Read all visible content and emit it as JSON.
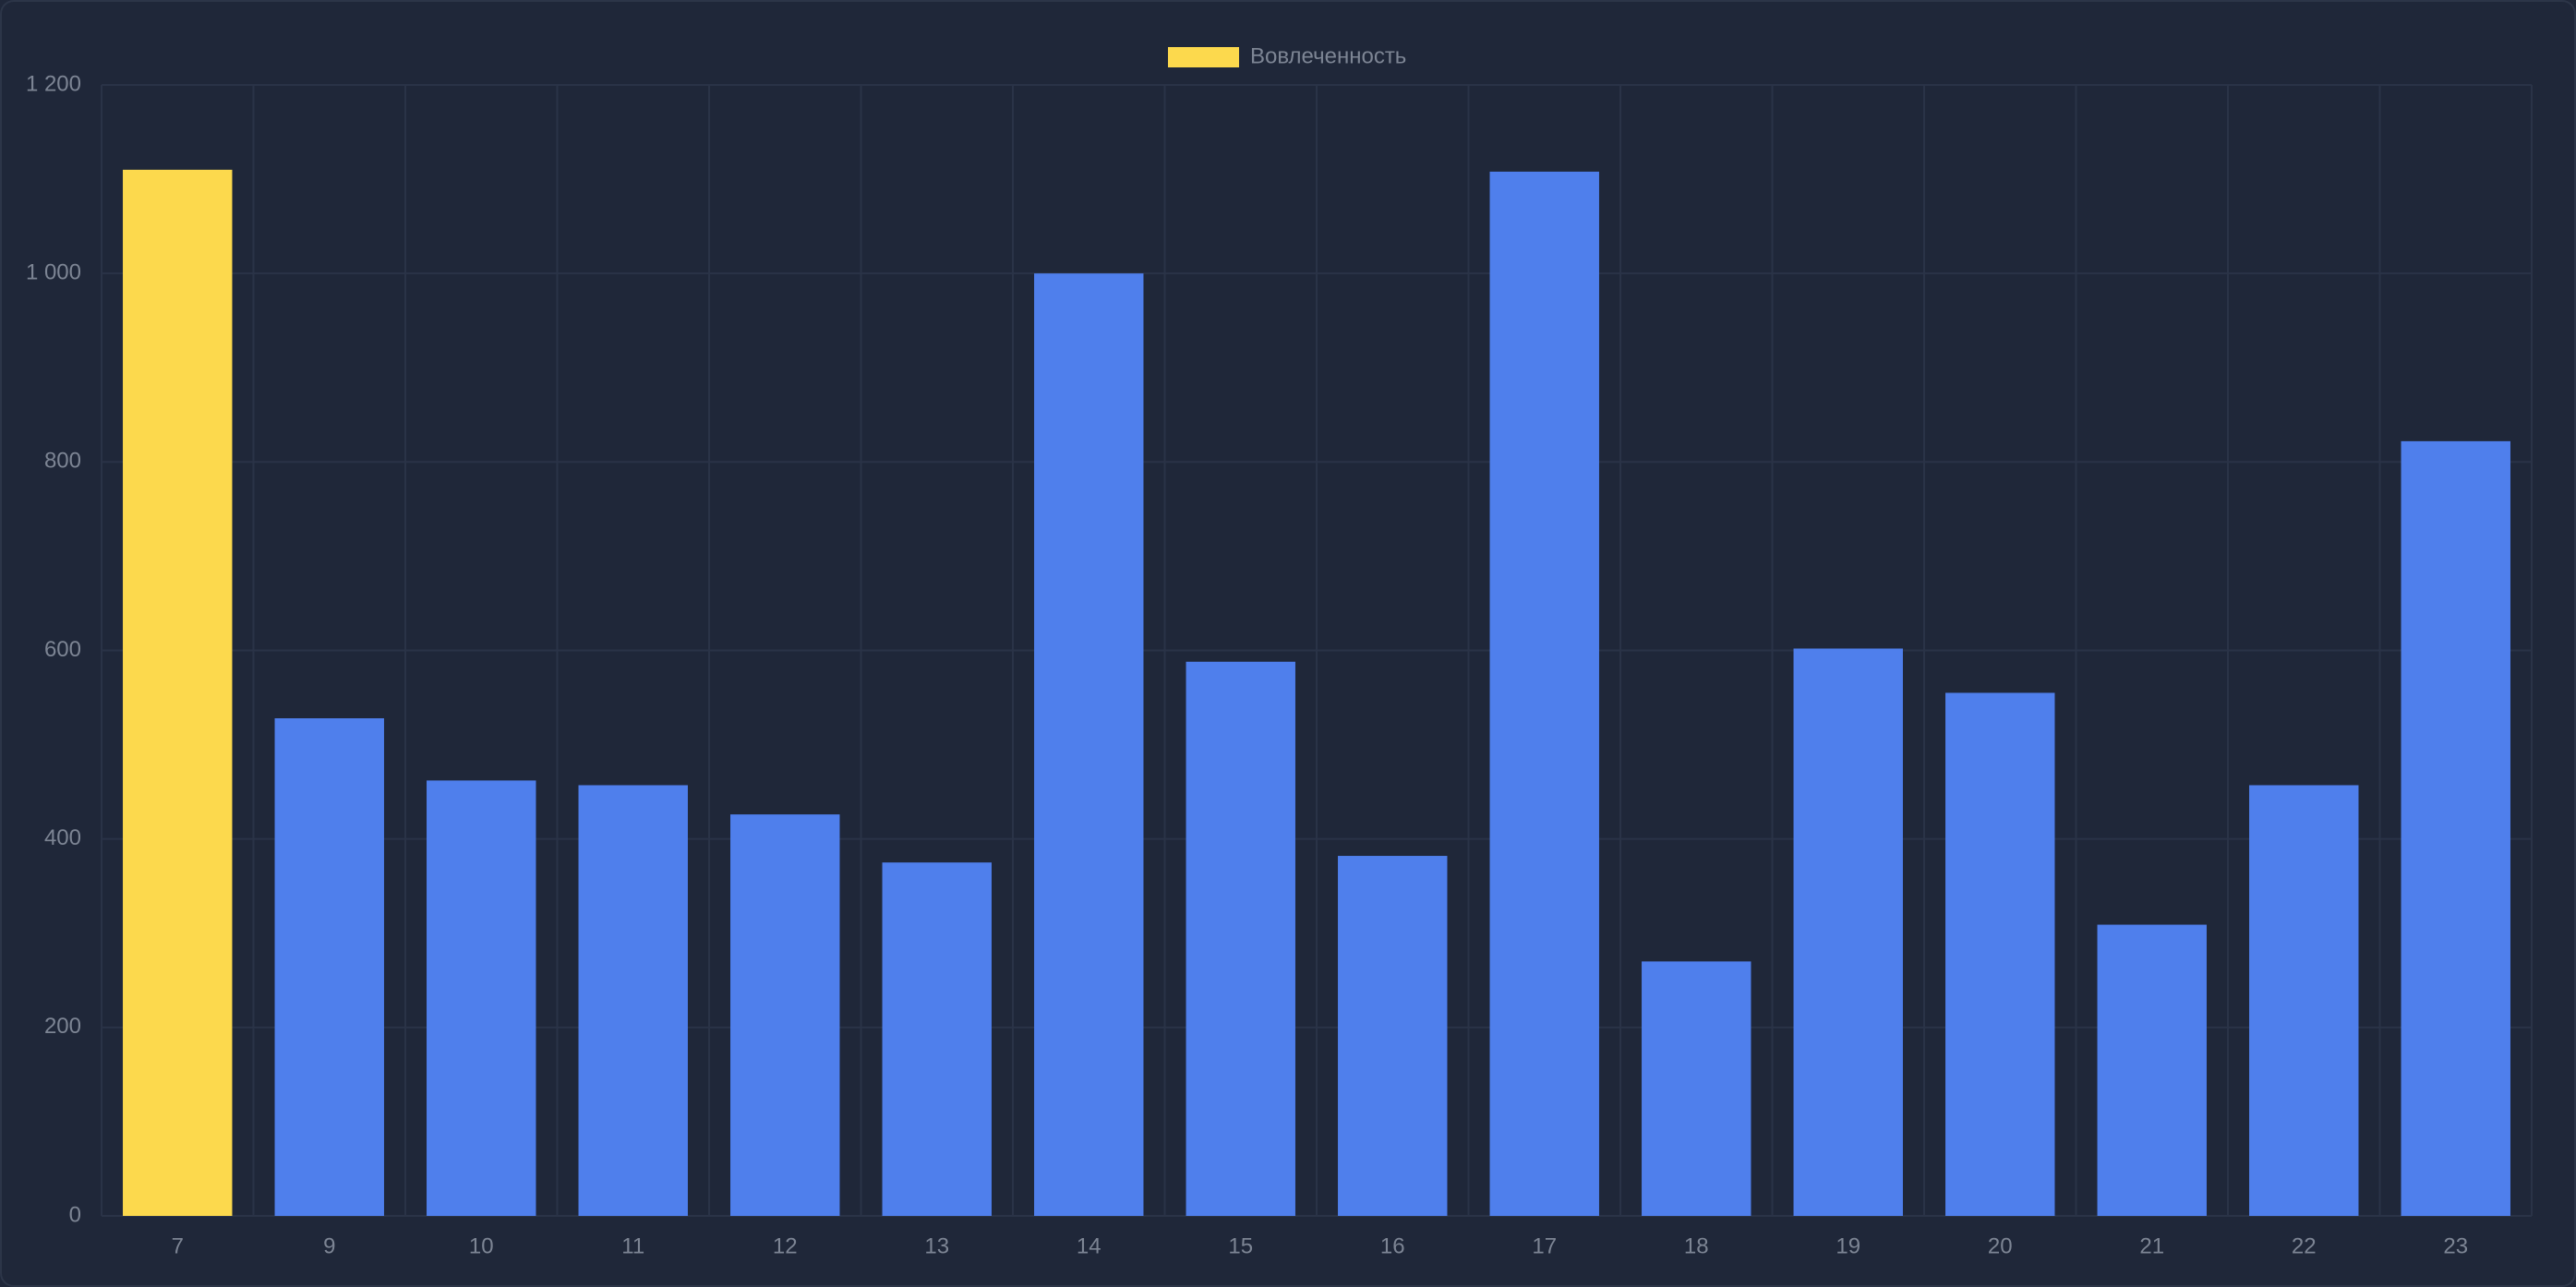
{
  "chart_data": {
    "type": "bar",
    "categories": [
      "7",
      "9",
      "10",
      "11",
      "12",
      "13",
      "14",
      "15",
      "16",
      "17",
      "18",
      "19",
      "20",
      "21",
      "22",
      "23"
    ],
    "series": [
      {
        "name": "Вовлеченность",
        "color": "#fcd94d",
        "values": [
          1110,
          528,
          462,
          457,
          426,
          375,
          1000,
          588,
          382,
          1108,
          270,
          602,
          555,
          309,
          457,
          822
        ]
      }
    ],
    "bar_colors": [
      "#fcd94d",
      "#4f7fec",
      "#4f7fec",
      "#4f7fec",
      "#4f7fec",
      "#4f7fec",
      "#4f7fec",
      "#4f7fec",
      "#4f7fec",
      "#4f7fec",
      "#4f7fec",
      "#4f7fec",
      "#4f7fec",
      "#4f7fec",
      "#4f7fec",
      "#4f7fec"
    ],
    "ylim": [
      0,
      1200
    ],
    "yticks": [
      0,
      200,
      400,
      600,
      800,
      {
        "value": 1000,
        "label": "1 000"
      },
      {
        "value": 1200,
        "label": "1 200"
      }
    ],
    "grid": true,
    "legend": "top"
  }
}
